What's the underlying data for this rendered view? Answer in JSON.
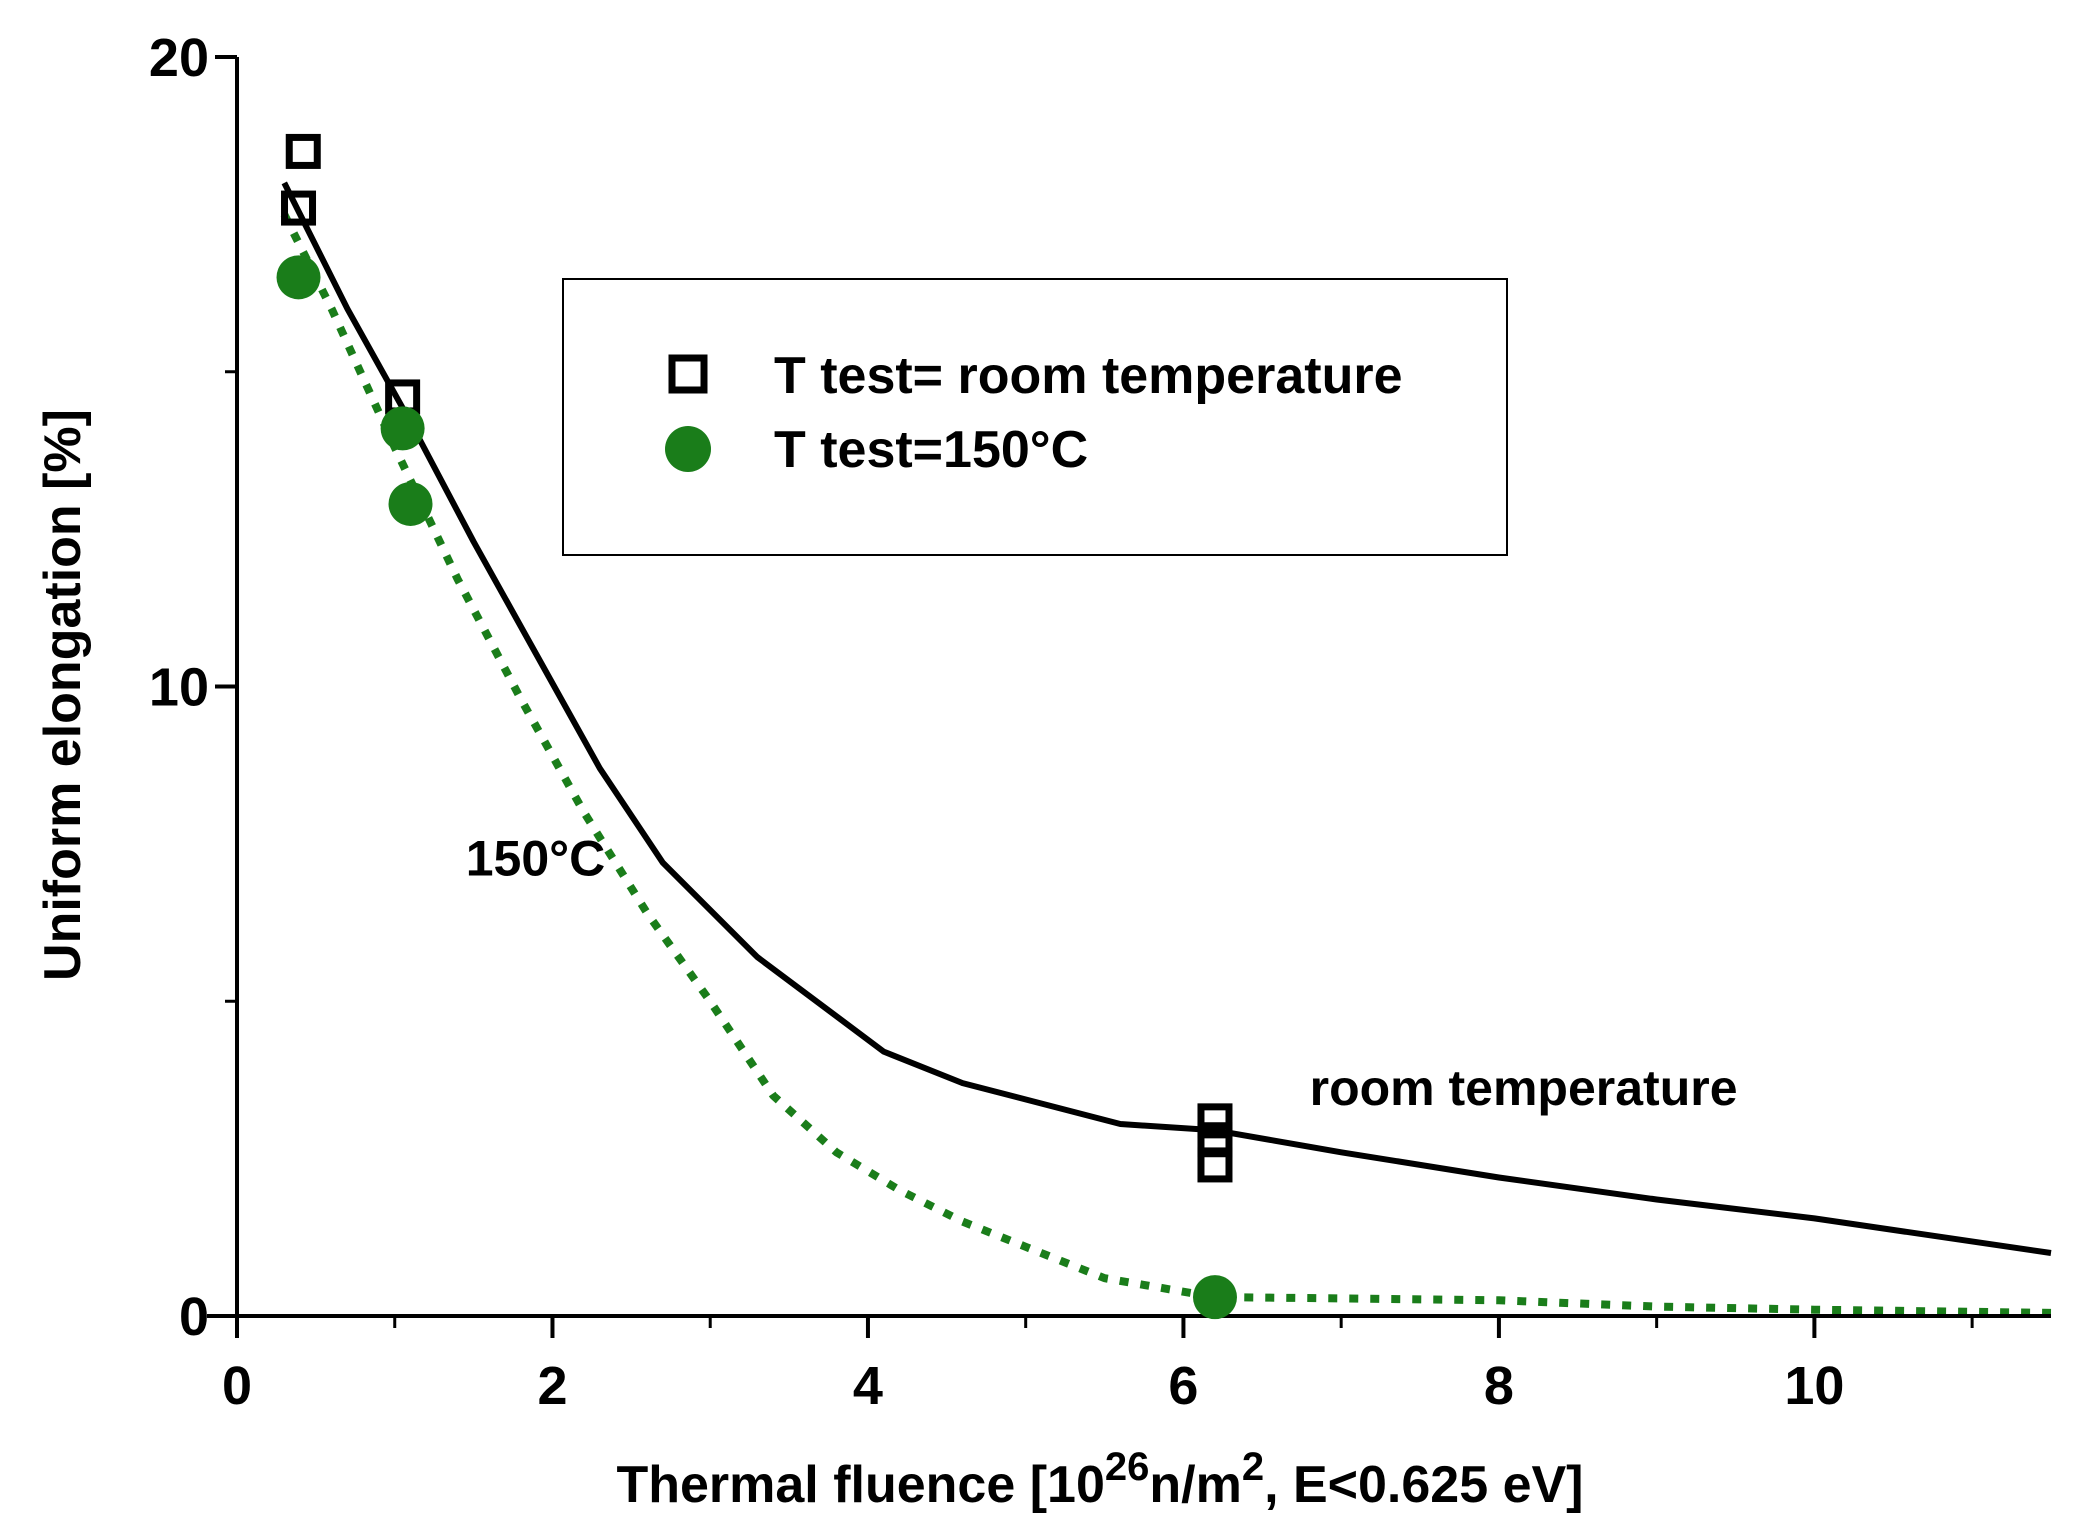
{
  "chart_data": {
    "type": "scatter",
    "xlabel": {
      "prefix": "Thermal fluence [10",
      "sup1": "26",
      "mid": "n/m",
      "sup2": "2",
      "suffix": ", E<0.625 eV]"
    },
    "ylabel": "Uniform elongation [%]",
    "xlim": [
      0,
      11.5
    ],
    "ylim": [
      0,
      20
    ],
    "x_ticks": [
      0,
      2,
      4,
      6,
      8,
      10
    ],
    "x_minor_ticks": [
      1,
      3,
      5,
      7,
      9,
      11
    ],
    "y_ticks": [
      0,
      10,
      20
    ],
    "y_minor_ticks": [
      5,
      15
    ],
    "grid": false,
    "legend_position": "top-center",
    "series": [
      {
        "name": "T test= room temperature",
        "marker": "open-square",
        "color": "#000000",
        "points": [
          {
            "x": 0.42,
            "y": 18.5
          },
          {
            "x": 0.39,
            "y": 17.6
          },
          {
            "x": 1.05,
            "y": 14.6
          },
          {
            "x": 6.2,
            "y": 3.1
          },
          {
            "x": 6.2,
            "y": 2.8
          },
          {
            "x": 6.2,
            "y": 2.4
          }
        ],
        "curve": {
          "style": "solid",
          "points": [
            {
              "x": 0.3,
              "y": 18.0
            },
            {
              "x": 0.7,
              "y": 16.0
            },
            {
              "x": 1.1,
              "y": 14.2
            },
            {
              "x": 1.5,
              "y": 12.3
            },
            {
              "x": 1.9,
              "y": 10.5
            },
            {
              "x": 2.3,
              "y": 8.7
            },
            {
              "x": 2.7,
              "y": 7.2
            },
            {
              "x": 3.3,
              "y": 5.7
            },
            {
              "x": 4.1,
              "y": 4.2
            },
            {
              "x": 4.6,
              "y": 3.7
            },
            {
              "x": 5.6,
              "y": 3.05
            },
            {
              "x": 6.2,
              "y": 2.95
            },
            {
              "x": 7.0,
              "y": 2.6
            },
            {
              "x": 8.0,
              "y": 2.2
            },
            {
              "x": 9.0,
              "y": 1.85
            },
            {
              "x": 10.0,
              "y": 1.55
            },
            {
              "x": 11.5,
              "y": 1.0
            }
          ]
        }
      },
      {
        "name": "T test=150°C",
        "marker": "filled-circle",
        "color": "#1a7d1a",
        "points": [
          {
            "x": 0.39,
            "y": 16.5
          },
          {
            "x": 1.05,
            "y": 14.1
          },
          {
            "x": 1.1,
            "y": 12.9
          },
          {
            "x": 6.2,
            "y": 0.3
          }
        ],
        "curve": {
          "style": "dotted",
          "points": [
            {
              "x": 0.3,
              "y": 17.5
            },
            {
              "x": 0.6,
              "y": 16.0
            },
            {
              "x": 1.0,
              "y": 13.8
            },
            {
              "x": 1.4,
              "y": 11.7
            },
            {
              "x": 1.8,
              "y": 9.8
            },
            {
              "x": 2.2,
              "y": 8.0
            },
            {
              "x": 2.6,
              "y": 6.4
            },
            {
              "x": 3.0,
              "y": 5.0
            },
            {
              "x": 3.4,
              "y": 3.5
            },
            {
              "x": 3.8,
              "y": 2.6
            },
            {
              "x": 4.2,
              "y": 2.0
            },
            {
              "x": 4.6,
              "y": 1.5
            },
            {
              "x": 5.0,
              "y": 1.1
            },
            {
              "x": 5.5,
              "y": 0.6
            },
            {
              "x": 6.2,
              "y": 0.3
            },
            {
              "x": 7.0,
              "y": 0.28
            },
            {
              "x": 8.0,
              "y": 0.25
            },
            {
              "x": 9.0,
              "y": 0.15
            },
            {
              "x": 10.0,
              "y": 0.1
            },
            {
              "x": 11.5,
              "y": 0.05
            }
          ]
        }
      }
    ],
    "annotations": [
      {
        "text": "150°C",
        "x": 1.45,
        "y": 7.0
      },
      {
        "text": "room temperature",
        "x": 6.8,
        "y": 3.35
      }
    ]
  }
}
